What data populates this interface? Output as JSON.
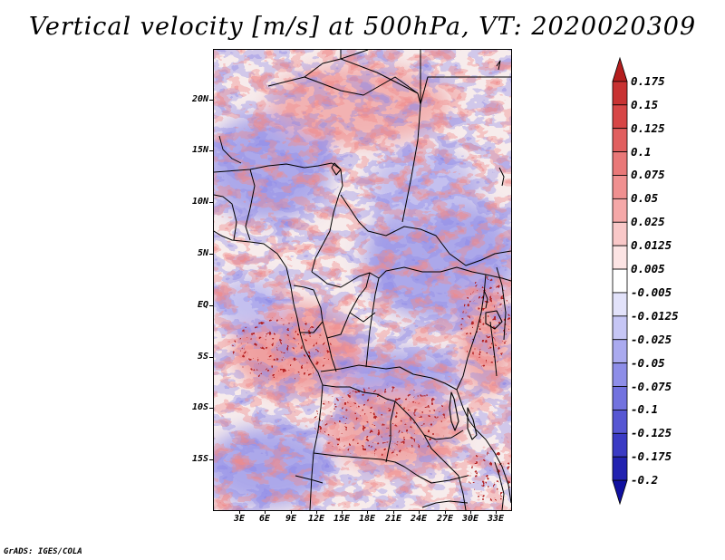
{
  "title": "Vertical velocity [m/s] at 500hPa, VT: 2020020309",
  "map": {
    "variable": "Vertical velocity",
    "units": "m/s",
    "level": "500hPa",
    "valid_time": "2020020309",
    "lat_labels": [
      "20N",
      "15N",
      "10N",
      "5N",
      "EQ",
      "5S",
      "10S",
      "15S"
    ],
    "lon_labels": [
      "3E",
      "6E",
      "9E",
      "12E",
      "15E",
      "18E",
      "21E",
      "24E",
      "27E",
      "30E",
      "33E"
    ]
  },
  "colorbar": {
    "labels": [
      "0.175",
      "0.15",
      "0.125",
      "0.1",
      "0.075",
      "0.05",
      "0.025",
      "0.0125",
      "0.005",
      "-0.005",
      "-0.0125",
      "-0.025",
      "-0.05",
      "-0.075",
      "-0.1",
      "-0.125",
      "-0.175",
      "-0.2"
    ],
    "colors": [
      "#b41e1e",
      "#c83232",
      "#d74646",
      "#e15f5f",
      "#e97878",
      "#f09090",
      "#f5a8a8",
      "#f9c8c8",
      "#fce4e4",
      "#ffffff",
      "#e2e2fa",
      "#c6c6f5",
      "#aaaaef",
      "#8e8ee8",
      "#7272df",
      "#5656d3",
      "#3a3ac4",
      "#2222b0",
      "#1010a0"
    ]
  },
  "footer": "GrADS: IGES/COLA"
}
